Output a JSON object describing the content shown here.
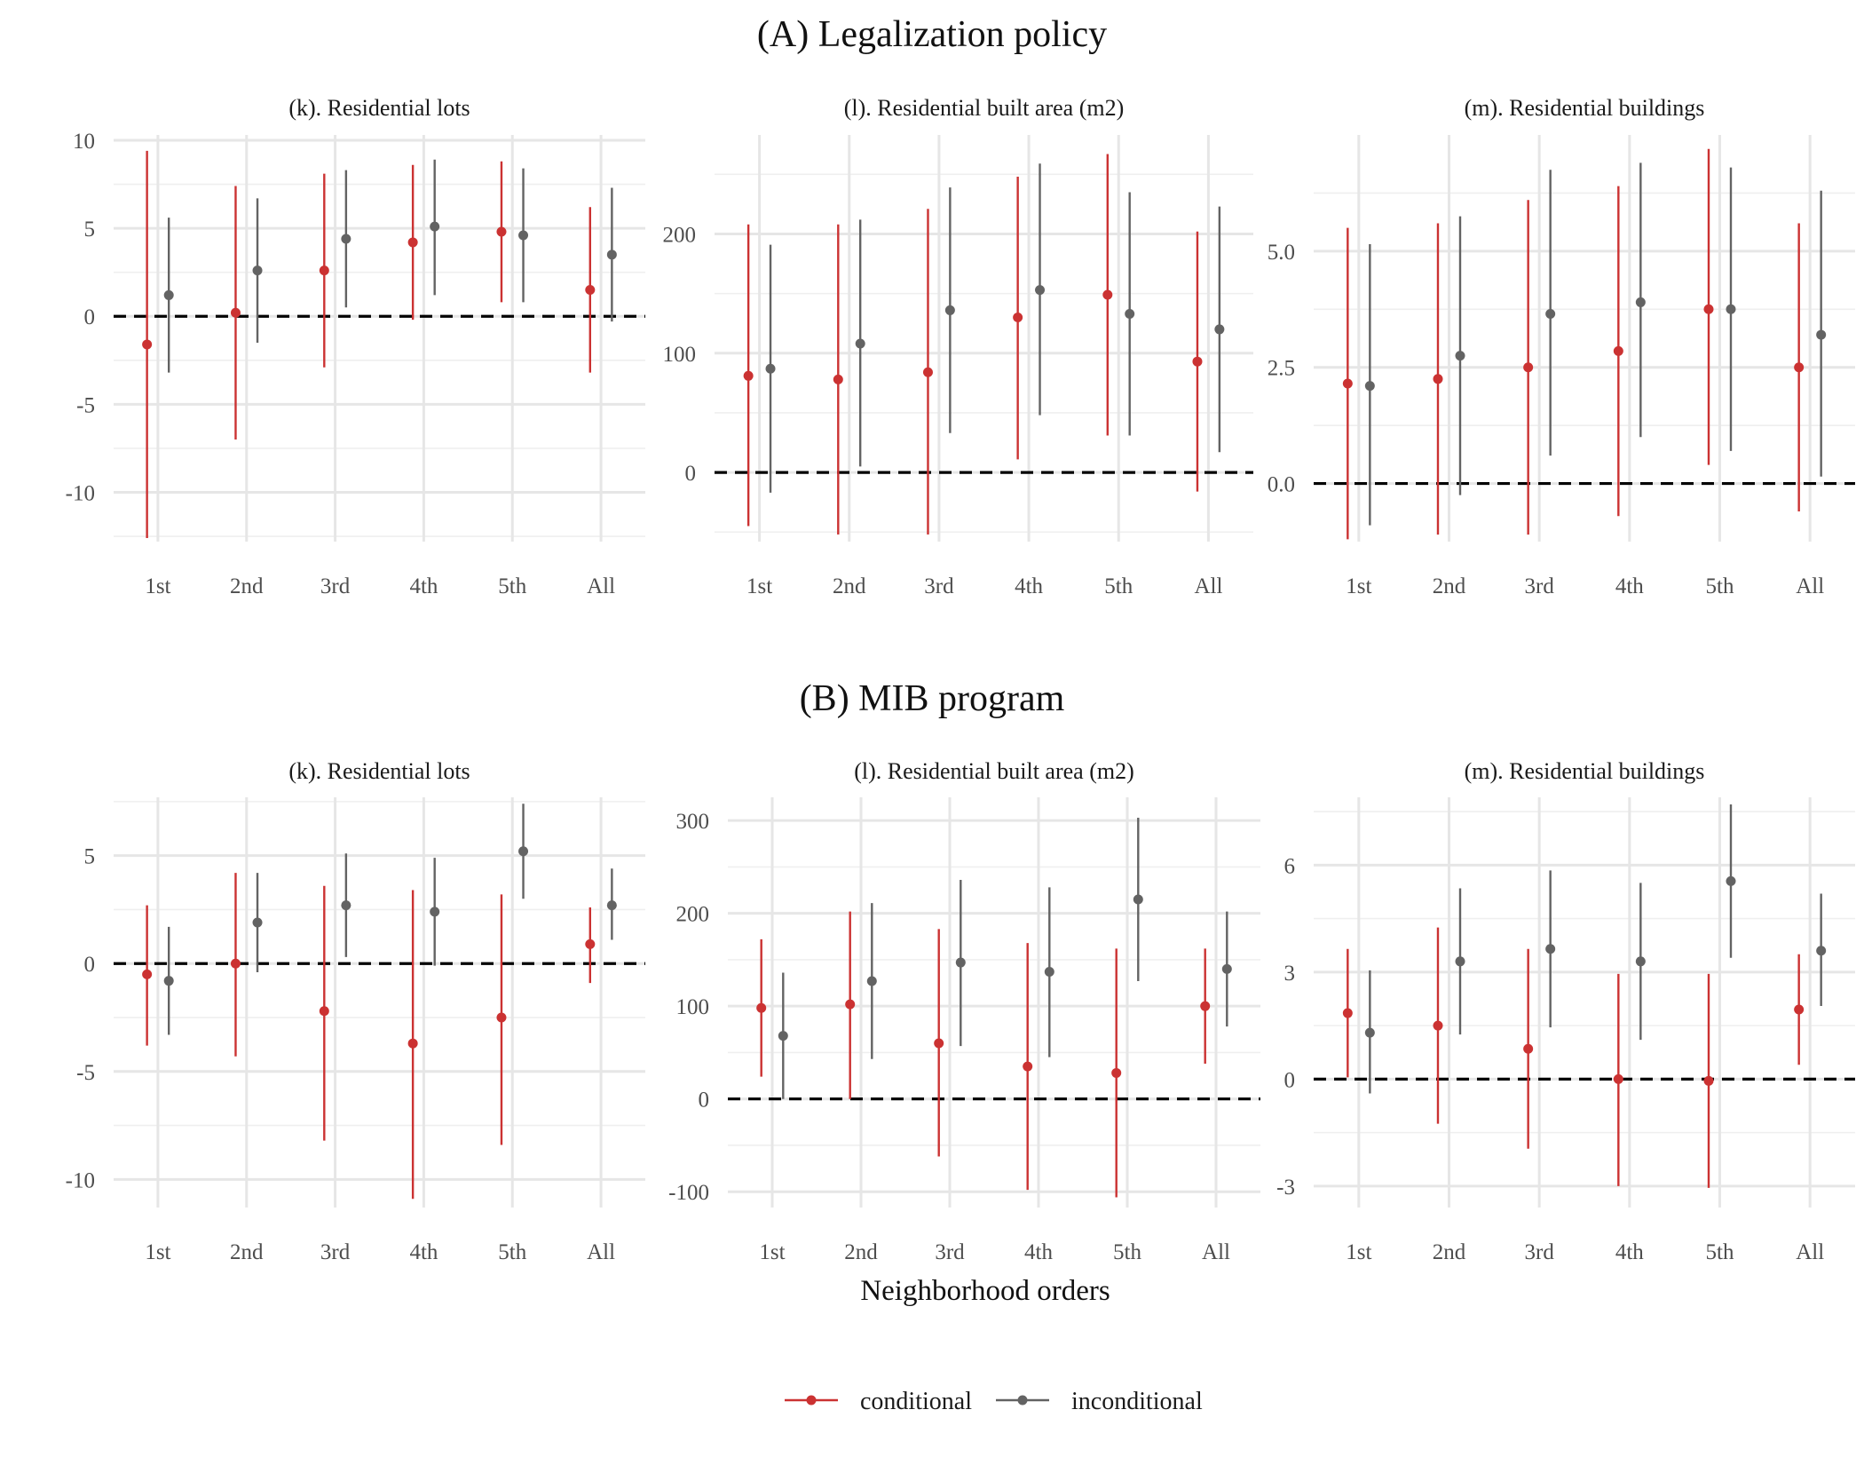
{
  "sections": [
    {
      "id": "A",
      "title": "(A) Legalization policy"
    },
    {
      "id": "B",
      "title": "(B) MIB program"
    }
  ],
  "x_axis_title": "Neighborhood orders",
  "legend": [
    {
      "label": "conditional",
      "color": "#CB3232"
    },
    {
      "label": "inconditional",
      "color": "#636363"
    }
  ],
  "chart_data": [
    {
      "type": "scatter",
      "section": "A",
      "title": "(k). Residential lots",
      "categories": [
        "1st",
        "2nd",
        "3rd",
        "4th",
        "5th",
        "All"
      ],
      "ylim": [
        -12.8,
        10.3
      ],
      "yticks": [
        -10,
        -5,
        0,
        5,
        10
      ],
      "yticklabels": [
        "-10",
        "-5",
        "0",
        "5",
        "10"
      ],
      "grid": true,
      "reference_line": 0,
      "series": [
        {
          "name": "conditional",
          "values": [
            -1.6,
            0.2,
            2.6,
            4.2,
            4.8,
            1.5
          ],
          "lower": [
            -12.6,
            -7.0,
            -2.9,
            -0.2,
            0.8,
            -3.2
          ],
          "upper": [
            9.4,
            7.4,
            8.1,
            8.6,
            8.8,
            6.2
          ]
        },
        {
          "name": "inconditional",
          "values": [
            1.2,
            2.6,
            4.4,
            5.1,
            4.6,
            3.5
          ],
          "lower": [
            -3.2,
            -1.5,
            0.5,
            1.2,
            0.8,
            -0.3
          ],
          "upper": [
            5.6,
            6.7,
            8.3,
            8.9,
            8.4,
            7.3
          ]
        }
      ]
    },
    {
      "type": "scatter",
      "section": "A",
      "title": "(l). Residential built area (m2)",
      "categories": [
        "1st",
        "2nd",
        "3rd",
        "4th",
        "5th",
        "All"
      ],
      "ylim": [
        -58,
        283
      ],
      "yticks": [
        0,
        100,
        200
      ],
      "yticklabels": [
        "0",
        "100",
        "200"
      ],
      "grid": true,
      "reference_line": 0,
      "series": [
        {
          "name": "conditional",
          "values": [
            81,
            78,
            84,
            130,
            149,
            93
          ],
          "lower": [
            -45,
            -52,
            -52,
            11,
            31,
            -16
          ],
          "upper": [
            208,
            208,
            221,
            248,
            267,
            202
          ]
        },
        {
          "name": "inconditional",
          "values": [
            87,
            108,
            136,
            153,
            133,
            120
          ],
          "lower": [
            -17,
            5,
            33,
            48,
            31,
            17
          ],
          "upper": [
            191,
            212,
            239,
            259,
            235,
            223
          ]
        }
      ]
    },
    {
      "type": "scatter",
      "section": "A",
      "title": "(m). Residential buildings",
      "categories": [
        "1st",
        "2nd",
        "3rd",
        "4th",
        "5th",
        "All"
      ],
      "ylim": [
        -1.25,
        7.5
      ],
      "yticks": [
        0,
        2.5,
        5
      ],
      "yticklabels": [
        "0.0",
        "2.5",
        "5.0"
      ],
      "grid": true,
      "reference_line": 0,
      "series": [
        {
          "name": "conditional",
          "values": [
            2.15,
            2.25,
            2.5,
            2.85,
            3.75,
            2.5
          ],
          "lower": [
            -1.2,
            -1.1,
            -1.1,
            -0.7,
            0.4,
            -0.6
          ],
          "upper": [
            5.5,
            5.6,
            6.1,
            6.4,
            7.2,
            5.6
          ]
        },
        {
          "name": "inconditional",
          "values": [
            2.1,
            2.75,
            3.65,
            3.9,
            3.75,
            3.2
          ],
          "lower": [
            -0.9,
            -0.25,
            0.6,
            1.0,
            0.7,
            0.15
          ],
          "upper": [
            5.15,
            5.75,
            6.75,
            6.9,
            6.8,
            6.3
          ]
        }
      ]
    },
    {
      "type": "scatter",
      "section": "B",
      "title": "(k). Residential lots",
      "categories": [
        "1st",
        "2nd",
        "3rd",
        "4th",
        "5th",
        "All"
      ],
      "ylim": [
        -11.3,
        7.7
      ],
      "yticks": [
        -10,
        -5,
        0,
        5
      ],
      "yticklabels": [
        "-10",
        "-5",
        "0",
        "5"
      ],
      "grid": true,
      "reference_line": 0,
      "series": [
        {
          "name": "conditional",
          "values": [
            -0.5,
            0.0,
            -2.2,
            -3.7,
            -2.5,
            0.9
          ],
          "lower": [
            -3.8,
            -4.3,
            -8.2,
            -10.9,
            -8.4,
            -0.9
          ],
          "upper": [
            2.7,
            4.2,
            3.6,
            3.4,
            3.2,
            2.6
          ]
        },
        {
          "name": "inconditional",
          "values": [
            -0.8,
            1.9,
            2.7,
            2.4,
            5.2,
            2.7
          ],
          "lower": [
            -3.3,
            -0.4,
            0.3,
            -0.1,
            3.0,
            1.1
          ],
          "upper": [
            1.7,
            4.2,
            5.1,
            4.9,
            7.4,
            4.4
          ]
        }
      ]
    },
    {
      "type": "scatter",
      "section": "B",
      "title": "(l). Residential built area (m2)",
      "categories": [
        "1st",
        "2nd",
        "3rd",
        "4th",
        "5th",
        "All"
      ],
      "ylim": [
        -117,
        325
      ],
      "yticks": [
        -100,
        0,
        100,
        200,
        300
      ],
      "yticklabels": [
        "-100",
        "0",
        "100",
        "200",
        "300"
      ],
      "grid": true,
      "reference_line": 0,
      "series": [
        {
          "name": "conditional",
          "values": [
            98,
            102,
            60,
            35,
            28,
            100
          ],
          "lower": [
            24,
            0,
            -62,
            -98,
            -106,
            38
          ],
          "upper": [
            172,
            202,
            183,
            168,
            162,
            162
          ]
        },
        {
          "name": "inconditional",
          "values": [
            68,
            127,
            147,
            137,
            215,
            140
          ],
          "lower": [
            0,
            43,
            57,
            45,
            127,
            78
          ],
          "upper": [
            136,
            211,
            236,
            228,
            303,
            202
          ]
        }
      ]
    },
    {
      "type": "scatter",
      "section": "B",
      "title": "(m). Residential buildings",
      "categories": [
        "1st",
        "2nd",
        "3rd",
        "4th",
        "5th",
        "All"
      ],
      "ylim": [
        -3.6,
        7.9
      ],
      "yticks": [
        -3,
        0,
        3,
        6
      ],
      "yticklabels": [
        "-3",
        "0",
        "3",
        "6"
      ],
      "grid": true,
      "reference_line": 0,
      "series": [
        {
          "name": "conditional",
          "values": [
            1.85,
            1.5,
            0.85,
            0.0,
            -0.05,
            1.95
          ],
          "lower": [
            0.05,
            -1.25,
            -1.95,
            -3.0,
            -3.05,
            0.4
          ],
          "upper": [
            3.65,
            4.25,
            3.65,
            2.95,
            2.95,
            3.5
          ]
        },
        {
          "name": "inconditional",
          "values": [
            1.3,
            3.3,
            3.65,
            3.3,
            5.55,
            3.6
          ],
          "lower": [
            -0.4,
            1.25,
            1.45,
            1.1,
            3.4,
            2.05
          ],
          "upper": [
            3.05,
            5.35,
            5.85,
            5.5,
            7.7,
            5.2
          ]
        }
      ]
    }
  ]
}
